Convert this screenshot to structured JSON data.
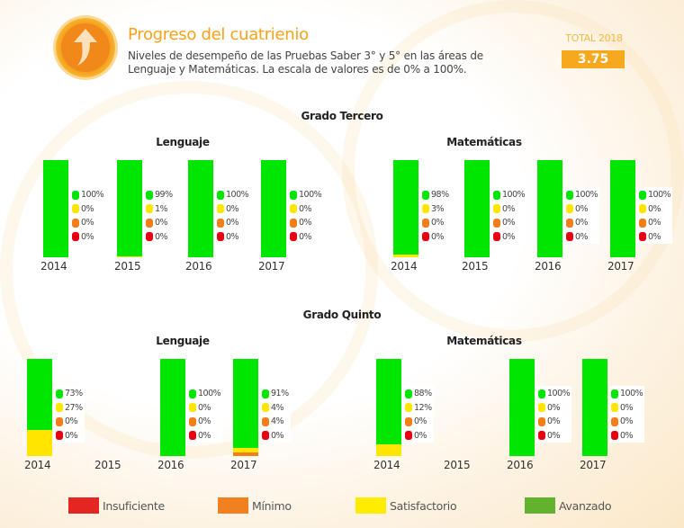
{
  "header": {
    "icon": "arrow-up-icon",
    "title": "Progreso del cuatrienio",
    "subtitle": "Niveles de desempeño de las Pruebas Saber 3° y 5° en las áreas de Lenguaje y Matemáticas. La escala de valores es de 0% a 100%.",
    "total_label": "TOTAL 2018",
    "total_value": "3.75"
  },
  "colors": {
    "avanzado": "#00e600",
    "satisfactorio": "#ffe600",
    "minimo": "#f47f1a",
    "insuficiente": "#e60012",
    "legend_avanzado": "#63b22e",
    "legend_satisfactorio": "#ffec00",
    "legend_minimo": "#f08020",
    "legend_insuficiente": "#e52521",
    "accent": "#f6a81e"
  },
  "legend": [
    {
      "key": "insuficiente",
      "label": "Insuficiente"
    },
    {
      "key": "minimo",
      "label": "Mínimo"
    },
    {
      "key": "satisfactorio",
      "label": "Satisfactorio"
    },
    {
      "key": "avanzado",
      "label": "Avanzado"
    }
  ],
  "chart_data": [
    {
      "type": "bar",
      "title": "Grado Tercero - Lenguaje",
      "grade": "Grado Tercero",
      "subject": "Lenguaje",
      "categories": [
        "2014",
        "2015",
        "2016",
        "2017"
      ],
      "series": [
        {
          "name": "Avanzado",
          "values": [
            100,
            99,
            100,
            100
          ],
          "labels": [
            "100%",
            "99%",
            "100%",
            "100%"
          ]
        },
        {
          "name": "Satisfactorio",
          "values": [
            0,
            1,
            0,
            0
          ],
          "labels": [
            "0%",
            "1%",
            "0%",
            "0%"
          ]
        },
        {
          "name": "Mínimo",
          "values": [
            0,
            0,
            0,
            0
          ],
          "labels": [
            "0%",
            "0%",
            "0%",
            "0%"
          ]
        },
        {
          "name": "Insuficiente",
          "values": [
            0,
            0,
            0,
            0
          ],
          "labels": [
            "0%",
            "0%",
            "0%",
            "0%"
          ]
        }
      ],
      "ylim": [
        0,
        100
      ]
    },
    {
      "type": "bar",
      "title": "Grado Tercero - Matemáticas",
      "grade": "Grado Tercero",
      "subject": "Matemáticas",
      "categories": [
        "2014",
        "2015",
        "2016",
        "2017"
      ],
      "series": [
        {
          "name": "Avanzado",
          "values": [
            98,
            100,
            100,
            100
          ],
          "labels": [
            "98%",
            "100%",
            "100%",
            "100%"
          ]
        },
        {
          "name": "Satisfactorio",
          "values": [
            3,
            0,
            0,
            0
          ],
          "labels": [
            "3%",
            "0%",
            "0%",
            "0%"
          ]
        },
        {
          "name": "Mínimo",
          "values": [
            0,
            0,
            0,
            0
          ],
          "labels": [
            "0%",
            "0%",
            "0%",
            "0%"
          ]
        },
        {
          "name": "Insuficiente",
          "values": [
            0,
            0,
            0,
            0
          ],
          "labels": [
            "0%",
            "0%",
            "0%",
            "0%"
          ]
        }
      ],
      "ylim": [
        0,
        100
      ]
    },
    {
      "type": "bar",
      "title": "Grado Quinto - Lenguaje",
      "grade": "Grado Quinto",
      "subject": "Lenguaje",
      "categories": [
        "2014",
        "2015",
        "2016",
        "2017"
      ],
      "series": [
        {
          "name": "Avanzado",
          "values": [
            73,
            null,
            100,
            91
          ],
          "labels": [
            "73%",
            null,
            "100%",
            "91%"
          ]
        },
        {
          "name": "Satisfactorio",
          "values": [
            27,
            null,
            0,
            4
          ],
          "labels": [
            "27%",
            null,
            "0%",
            "4%"
          ]
        },
        {
          "name": "Mínimo",
          "values": [
            0,
            null,
            0,
            4
          ],
          "labels": [
            "0%",
            null,
            "0%",
            "4%"
          ]
        },
        {
          "name": "Insuficiente",
          "values": [
            0,
            null,
            0,
            0
          ],
          "labels": [
            "0%",
            null,
            "0%",
            "0%"
          ]
        }
      ],
      "ylim": [
        0,
        100
      ]
    },
    {
      "type": "bar",
      "title": "Grado Quinto - Matemáticas",
      "grade": "Grado Quinto",
      "subject": "Matemáticas",
      "categories": [
        "2014",
        "2015",
        "2016",
        "2017"
      ],
      "series": [
        {
          "name": "Avanzado",
          "values": [
            88,
            null,
            100,
            100
          ],
          "labels": [
            "88%",
            null,
            "100%",
            "100%"
          ]
        },
        {
          "name": "Satisfactorio",
          "values": [
            12,
            null,
            0,
            0
          ],
          "labels": [
            "12%",
            null,
            "0%",
            "0%"
          ]
        },
        {
          "name": "Mínimo",
          "values": [
            0,
            null,
            0,
            0
          ],
          "labels": [
            "0%",
            null,
            "0%",
            "0%"
          ]
        },
        {
          "name": "Insuficiente",
          "values": [
            0,
            null,
            0,
            0
          ],
          "labels": [
            "0%",
            null,
            "0%",
            "0%"
          ]
        }
      ],
      "ylim": [
        0,
        100
      ]
    }
  ]
}
